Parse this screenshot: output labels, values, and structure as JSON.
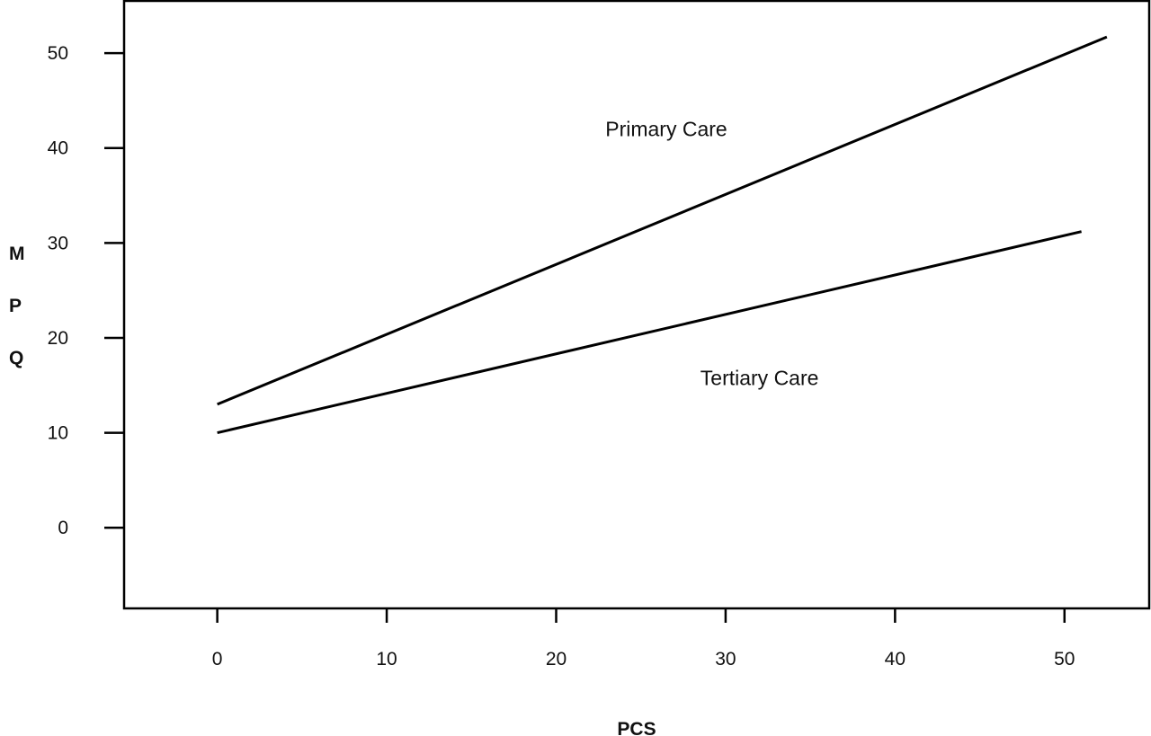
{
  "chart_data": {
    "type": "line",
    "xlabel": "PCS",
    "ylabel": "MPQ",
    "xlim": [
      -5.5,
      55
    ],
    "ylim": [
      -8.5,
      55.5
    ],
    "xticks": [
      0,
      10,
      20,
      30,
      40,
      50
    ],
    "yticks": [
      0,
      10,
      20,
      30,
      40,
      50
    ],
    "grid": false,
    "series": [
      {
        "name": "Primary Care",
        "x": [
          0,
          52.5
        ],
        "y": [
          13,
          51.7
        ],
        "label_at": [
          26.5,
          42
        ]
      },
      {
        "name": "Tertiary Care",
        "x": [
          0,
          51
        ],
        "y": [
          10,
          31.2
        ],
        "label_at": [
          32,
          15.8
        ]
      }
    ]
  }
}
